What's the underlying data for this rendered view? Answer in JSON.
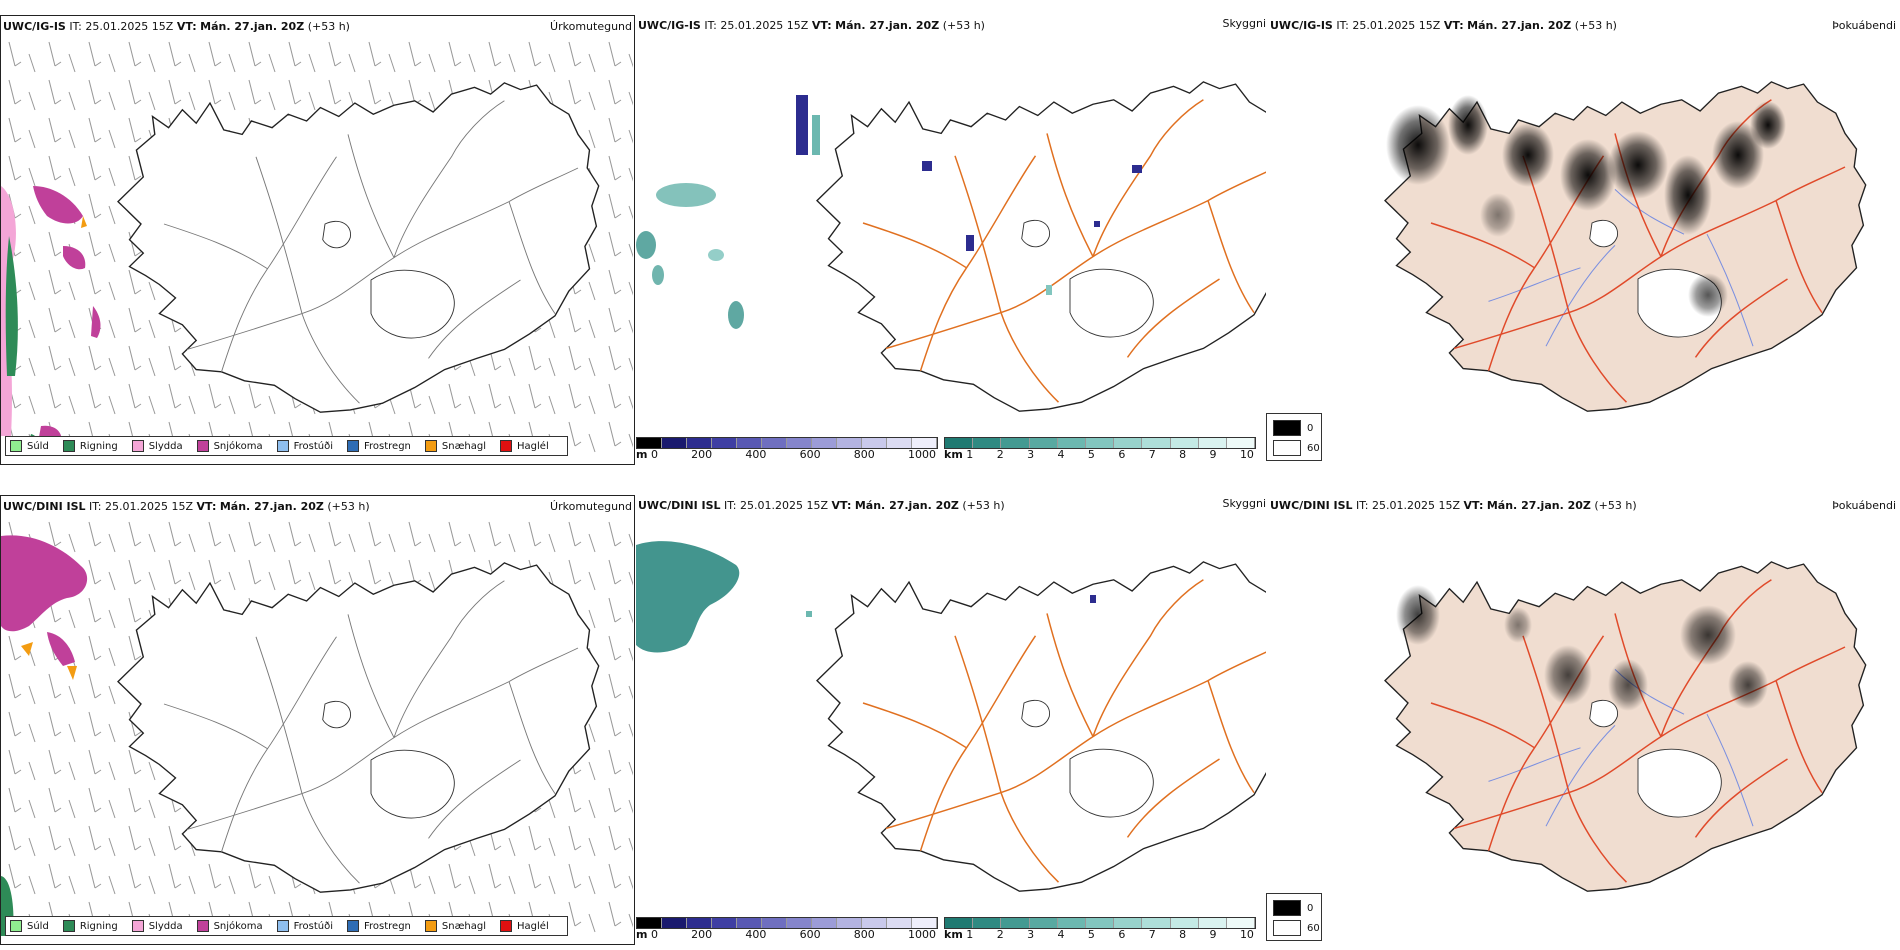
{
  "rows": [
    {
      "model": "UWC/IG-IS",
      "it_label": "IT:",
      "it_value": "25.01.2025 15Z",
      "vt_label": "VT:",
      "vt_value": "Mán. 27.jan. 20Z",
      "lead": "(+53 h)"
    },
    {
      "model": "UWC/DINI ISL",
      "it_label": "IT:",
      "it_value": "25.01.2025 15Z",
      "vt_label": "VT:",
      "vt_value": "Mán. 27.jan. 20Z",
      "lead": "(+53 h)"
    }
  ],
  "panel_titles": {
    "precip_type": "Úrkomutegund",
    "visibility": "Skyggni",
    "fog": "Þokuábendi"
  },
  "precip_legend": [
    {
      "label": "Súld",
      "color": "#90ee90"
    },
    {
      "label": "Rigning",
      "color": "#2e8b57"
    },
    {
      "label": "Slydda",
      "color": "#f4a6d7"
    },
    {
      "label": "Snjókoma",
      "color": "#c0409a"
    },
    {
      "label": "Frostúði",
      "color": "#8fbfef"
    },
    {
      "label": "Frostregn",
      "color": "#2f6db5"
    },
    {
      "label": "Snæhagl",
      "color": "#f39c12"
    },
    {
      "label": "Haglél",
      "color": "#e01010"
    }
  ],
  "scale_m": {
    "unit": "m",
    "ticks": [
      "0",
      "200",
      "400",
      "600",
      "800",
      "1000"
    ],
    "colors": [
      "#000000",
      "#1a1a6e",
      "#2c2c8f",
      "#3f3fa3",
      "#5858b3",
      "#6f6fc0",
      "#8585cc",
      "#9c9cd7",
      "#b3b3e1",
      "#c9c9eb",
      "#dcdcf3",
      "#eeeefa"
    ]
  },
  "scale_km": {
    "unit": "km",
    "ticks": [
      "1",
      "2",
      "3",
      "4",
      "5",
      "6",
      "7",
      "8",
      "9",
      "10"
    ],
    "colors": [
      "#1f7a72",
      "#2f8a82",
      "#449a92",
      "#58a9a1",
      "#6cb8b0",
      "#82c6bf",
      "#98d3cc",
      "#aedfd9",
      "#c4eae5",
      "#daf3f0",
      "#eefaf8"
    ]
  },
  "fog_legend": {
    "high": "0",
    "low": "60"
  },
  "colors": {
    "land_fog": "#f0ddd0",
    "roads": "#e07020",
    "roads_fog": "#e04a2a",
    "rivers": "#7a8fe0",
    "coast": "#222222"
  }
}
